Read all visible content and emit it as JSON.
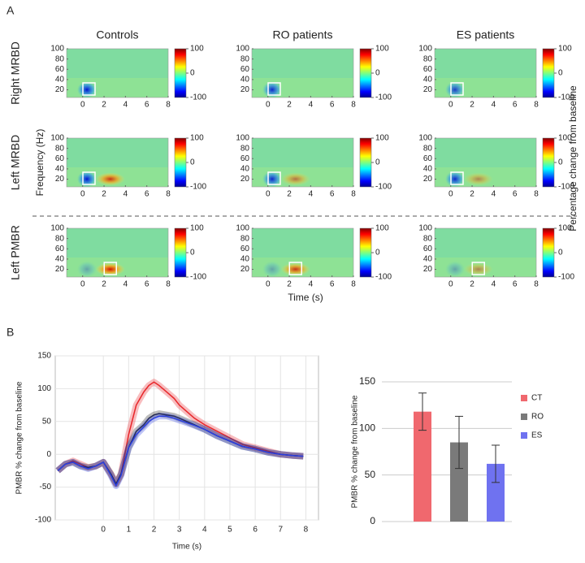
{
  "chart_data": [
    {
      "type": "heatmap",
      "label": "A",
      "columns": [
        "Controls",
        "RO patients",
        "ES patients"
      ],
      "rows": [
        "Right MRBD",
        "Left MRBD",
        "Left PMBR"
      ],
      "xlabel": "Time (s)",
      "ylabel": "Frequency (Hz)",
      "colorbar_label": "Percentage change from baseline",
      "xlim": [
        -1.5,
        8
      ],
      "xticks": [
        0,
        2,
        4,
        6,
        8
      ],
      "ylim": [
        5,
        100
      ],
      "yticks": [
        20,
        40,
        60,
        80,
        100
      ],
      "clim": [
        -100,
        100
      ],
      "cticks": [
        -100,
        0,
        100
      ],
      "colormap": "jet"
    },
    {
      "type": "line",
      "label": "B",
      "ylabel": "PMBR % change from baseline",
      "xlabel": "Time (s)",
      "x": [
        -1.8,
        -1.5,
        -1.2,
        -0.9,
        -0.6,
        -0.3,
        0,
        0.3,
        0.5,
        0.7,
        1,
        1.3,
        1.6,
        1.8,
        2,
        2.2,
        2.5,
        2.8,
        3,
        3.3,
        3.6,
        4,
        4.5,
        5,
        5.5,
        6,
        6.5,
        7,
        7.5,
        7.9
      ],
      "series": [
        {
          "color": "#e8262a",
          "values": [
            -25,
            -15,
            -10,
            -15,
            -20,
            -18,
            -12,
            -30,
            -45,
            -30,
            30,
            75,
            95,
            105,
            110,
            105,
            95,
            85,
            75,
            65,
            55,
            45,
            35,
            25,
            15,
            10,
            5,
            0,
            -2,
            -3
          ]
        },
        {
          "color": "#222222",
          "values": [
            -25,
            -15,
            -12,
            -18,
            -20,
            -18,
            -12,
            -30,
            -45,
            -30,
            10,
            35,
            45,
            55,
            60,
            62,
            60,
            58,
            55,
            50,
            45,
            38,
            28,
            20,
            12,
            8,
            3,
            0,
            -2,
            -3
          ]
        },
        {
          "color": "#2a3ee0",
          "values": [
            -25,
            -15,
            -12,
            -18,
            -22,
            -18,
            -12,
            -32,
            -48,
            -32,
            10,
            30,
            42,
            50,
            55,
            58,
            58,
            55,
            52,
            48,
            44,
            38,
            28,
            20,
            12,
            8,
            3,
            0,
            -2,
            -3
          ]
        }
      ],
      "xlim": [
        -1.9,
        8.5
      ],
      "xticks": [
        0,
        1,
        2,
        3,
        4,
        5,
        6,
        7,
        8
      ],
      "ylim": [
        -100,
        150
      ],
      "yticks": [
        -100,
        -50,
        0,
        50,
        100,
        150
      ],
      "grid": true
    },
    {
      "type": "bar",
      "ylabel": "PMBR % change from baseline",
      "series": [
        {
          "name": "CT",
          "color": "#f0686e",
          "values": [
            118
          ],
          "errors": [
            20
          ]
        },
        {
          "name": "RO",
          "color": "#7a7a7a",
          "values": [
            85
          ],
          "errors": [
            28
          ]
        },
        {
          "name": "ES",
          "color": "#6f72f0",
          "values": [
            62
          ],
          "errors": [
            20
          ]
        }
      ],
      "ylim": [
        0,
        150
      ],
      "yticks": [
        0,
        50,
        100,
        150
      ],
      "grid": true,
      "legend": "right"
    }
  ]
}
